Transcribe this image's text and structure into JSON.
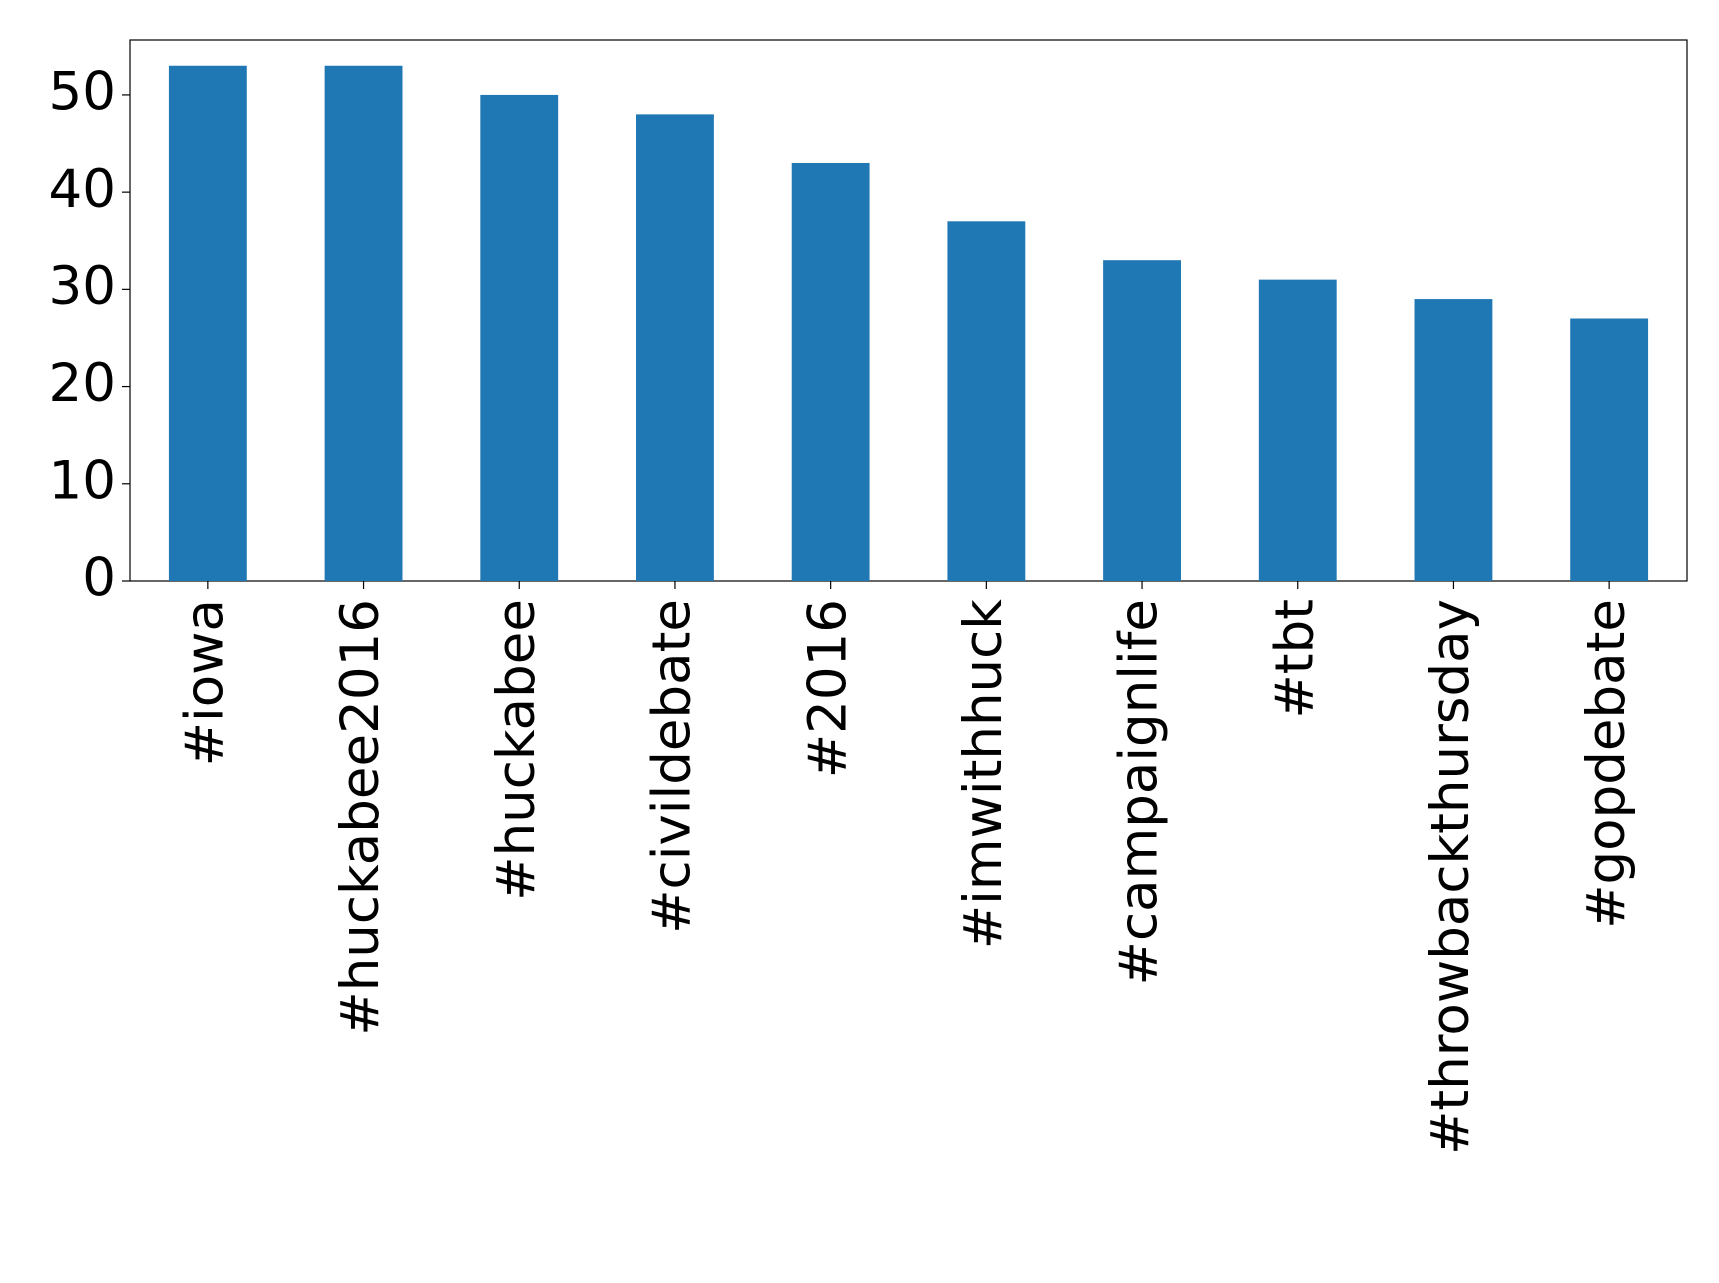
{
  "chart_data": {
    "type": "bar",
    "categories": [
      "#iowa",
      "#huckabee2016",
      "#huckabee",
      "#civildebate",
      "#2016",
      "#imwithhuck",
      "#campaignlife",
      "#tbt",
      "#throwbackthursday",
      "#gopdebate"
    ],
    "values": [
      53,
      53,
      50,
      48,
      43,
      37,
      33,
      31,
      29,
      27
    ],
    "color": "#1f77b4",
    "ylim": [
      0,
      55.65
    ],
    "yticks": [
      0,
      10,
      20,
      30,
      40,
      50
    ],
    "grid": false
  }
}
